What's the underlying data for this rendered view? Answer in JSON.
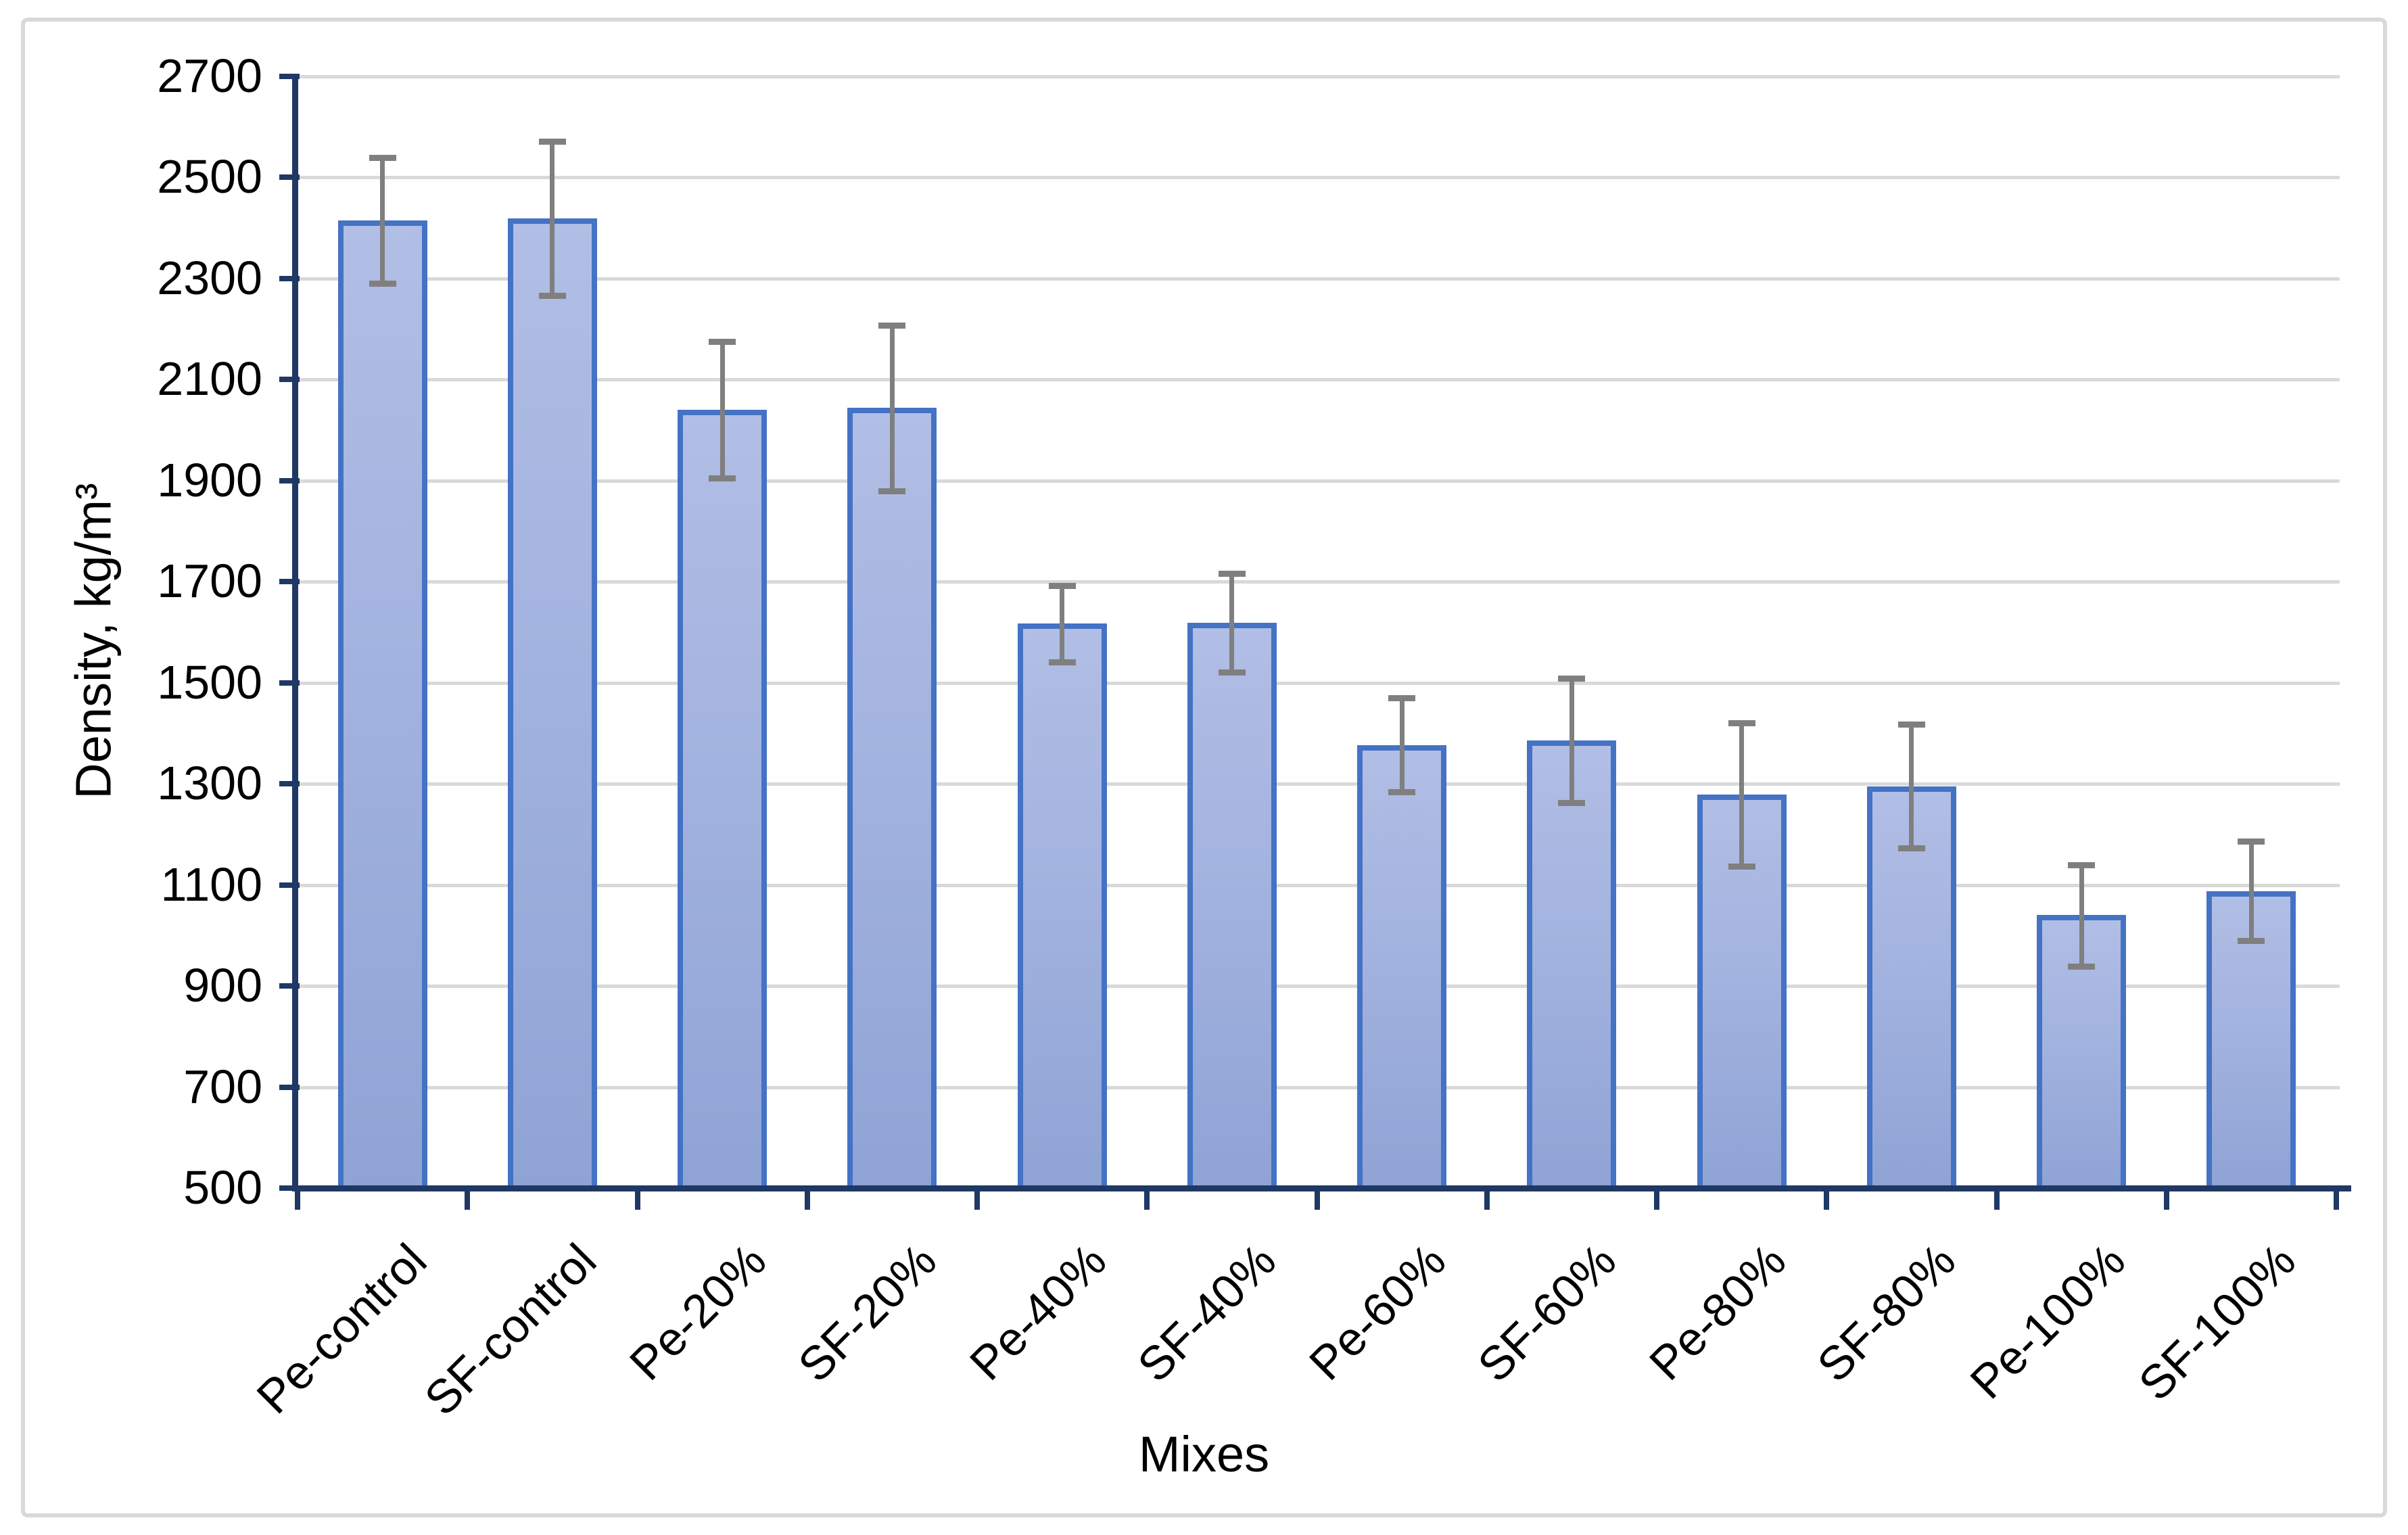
{
  "chart_data": {
    "type": "bar",
    "title": "",
    "xlabel": "Mixes",
    "ylabel": "Density, kg/m³",
    "categories": [
      "Pe-control",
      "SF-control",
      "Pe-20%",
      "SF-20%",
      "Pe-40%",
      "SF-40%",
      "Pe-60%",
      "SF-60%",
      "Pe-80%",
      "SF-80%",
      "Pe-100%",
      "SF-100%"
    ],
    "values": [
      2415,
      2419,
      2040,
      2044,
      1617,
      1619,
      1377,
      1386,
      1279,
      1295,
      1040,
      1088
    ],
    "error_low": [
      2290,
      2266,
      1905,
      1880,
      1541,
      1521,
      1284,
      1263,
      1137,
      1173,
      939,
      990
    ],
    "error_high": [
      2540,
      2572,
      2175,
      2208,
      1692,
      1717,
      1470,
      1509,
      1421,
      1418,
      1140,
      1187
    ],
    "ylim": [
      500,
      2700
    ],
    "ytick_step": 200,
    "yticks": [
      500,
      700,
      900,
      1100,
      1300,
      1500,
      1700,
      1900,
      2100,
      2300,
      2500,
      2700
    ],
    "grid": true,
    "legend": "none",
    "colors": {
      "bar_fill_top": "#B1BEE5",
      "bar_fill_bottom": "#8FA3D5",
      "bar_border": "#4472C4",
      "error_bar": "#7F7F7F",
      "gridline": "#D9D9D9",
      "axis": "#1F3864",
      "frame": "#D9D9D9",
      "text": "#000000"
    }
  }
}
